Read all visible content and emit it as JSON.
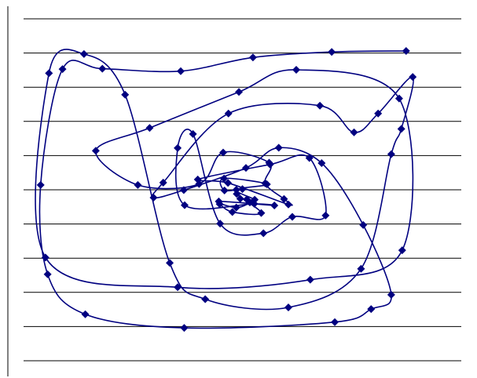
{
  "chart_data": {
    "type": "scatter",
    "title": "",
    "xlabel": "",
    "ylabel": "",
    "grid": true,
    "legend": "none",
    "xlim": [
      0,
      100
    ],
    "ylim": [
      0,
      100
    ],
    "series": [
      {
        "color": "#000080",
        "marker": "diamond",
        "smooth": true,
        "points": [
          [
            87.4,
            90.6
          ],
          [
            70.4,
            90.3
          ],
          [
            52.4,
            88.7
          ],
          [
            35.9,
            84.7
          ],
          [
            18.0,
            85.4
          ],
          [
            8.9,
            85.3
          ],
          [
            3.9,
            51.4
          ],
          [
            5.5,
            25.3
          ],
          [
            14.1,
            13.6
          ],
          [
            36.7,
            9.6
          ],
          [
            71.1,
            11.3
          ],
          [
            79.4,
            15.1
          ],
          [
            84.0,
            19.3
          ],
          [
            77.6,
            39.7
          ],
          [
            68.1,
            57.8
          ],
          [
            58.3,
            62.3
          ],
          [
            50.8,
            56.4
          ],
          [
            36.6,
            49.9
          ],
          [
            29.7,
            47.7
          ],
          [
            31.9,
            52.1
          ],
          [
            46.8,
            72.3
          ],
          [
            67.7,
            74.6
          ],
          [
            75.5,
            66.8
          ],
          [
            81.0,
            72.3
          ],
          [
            88.9,
            83.0
          ],
          [
            86.3,
            67.8
          ],
          [
            84.0,
            60.4
          ],
          [
            77.1,
            26.9
          ],
          [
            60.5,
            15.6
          ],
          [
            41.5,
            18.0
          ],
          [
            33.4,
            28.6
          ],
          [
            23.2,
            77.8
          ],
          [
            13.8,
            89.7
          ],
          [
            5.8,
            84.1
          ],
          [
            5.0,
            30.2
          ],
          [
            35.2,
            21.5
          ],
          [
            65.5,
            23.7
          ],
          [
            86.5,
            32.3
          ],
          [
            85.8,
            76.7
          ],
          [
            62.3,
            85.1
          ],
          [
            49.2,
            78.6
          ],
          [
            28.8,
            68.1
          ],
          [
            16.5,
            61.4
          ],
          [
            26.1,
            51.4
          ],
          [
            40.1,
            51.7
          ],
          [
            45.6,
            60.9
          ],
          [
            56.1,
            57.9
          ],
          [
            55.2,
            51.9
          ],
          [
            59.5,
            47.3
          ],
          [
            60.5,
            45.7
          ],
          [
            46.7,
            52.0
          ],
          [
            39.8,
            53.0
          ],
          [
            56.3,
            57.4
          ],
          [
            65.3,
            59.3
          ],
          [
            69.0,
            42.5
          ],
          [
            61.4,
            42.1
          ],
          [
            54.8,
            37.3
          ],
          [
            44.9,
            40.1
          ],
          [
            38.7,
            66.3
          ],
          [
            35.2,
            62.2
          ],
          [
            36.8,
            45.5
          ],
          [
            52.7,
            45.9
          ],
          [
            57.3,
            45.4
          ],
          [
            44.6,
            46.6
          ],
          [
            48.6,
            44.8
          ],
          [
            51.7,
            46.3
          ],
          [
            51.0,
            47.2
          ],
          [
            49.5,
            47.4
          ],
          [
            52.8,
            47.1
          ],
          [
            48.6,
            50.0
          ],
          [
            55.6,
            51.6
          ],
          [
            45.8,
            53.3
          ],
          [
            45.9,
            49.8
          ],
          [
            50.0,
            50.2
          ],
          [
            48.7,
            48.8
          ],
          [
            54.3,
            43.2
          ],
          [
            47.7,
            43.5
          ],
          [
            44.8,
            45.8
          ]
        ]
      }
    ]
  }
}
